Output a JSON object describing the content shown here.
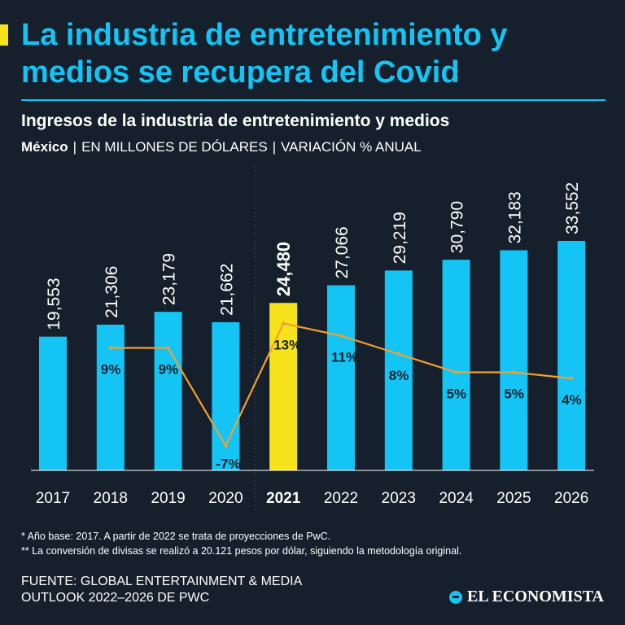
{
  "headline": {
    "line1": "La industria de entretenimiento y",
    "line2": "medios se recupera del Covid"
  },
  "subtitle": "Ingresos de la industria de entretenimiento y medios",
  "meta": {
    "country": "México",
    "unit": "EN MILLONES DE DÓLARES",
    "variation": "VARIACIÓN % ANUAL"
  },
  "colors": {
    "background": "#15202c",
    "bar": "#14c4f5",
    "highlight_bar": "#f7e31c",
    "line": "#f0a030",
    "title": "#14c4f5"
  },
  "chart_data": {
    "type": "bar",
    "title": "Ingresos de la industria de entretenimiento y medios",
    "xlabel": "",
    "ylabel": "EN MILLONES DE DÓLARES",
    "categories": [
      "2017",
      "2018",
      "2019",
      "2020",
      "2021",
      "2022",
      "2023",
      "2024",
      "2025",
      "2026"
    ],
    "values": [
      19553,
      21306,
      23179,
      21662,
      24480,
      27066,
      29219,
      30790,
      32183,
      33552
    ],
    "value_labels": [
      "19,553",
      "21,306",
      "23,179",
      "21,662",
      "24,480",
      "27,066",
      "29,219",
      "30,790",
      "32,183",
      "33,552"
    ],
    "highlight_category": "2021",
    "ylim": [
      0,
      35000
    ],
    "grid": false,
    "line_series": {
      "name": "VARIACIÓN % ANUAL",
      "categories": [
        "2018",
        "2019",
        "2020",
        "2021",
        "2022",
        "2023",
        "2024",
        "2025",
        "2026"
      ],
      "values": [
        9,
        9,
        -7,
        13,
        11,
        8,
        5,
        5,
        4
      ],
      "labels": [
        "9%",
        "9%",
        "-7%",
        "13%",
        "11%",
        "8%",
        "5%",
        "5%",
        "4%"
      ],
      "ylim": [
        -10,
        16
      ]
    }
  },
  "footnotes": {
    "base": "* Año base: 2017. A partir de 2022 se trata de proyecciones de PwC.",
    "conversion": "** La conversión de divisas se realizó a 20.121 pesos por dólar, siguiendo la metodología original."
  },
  "source": {
    "line1": "FUENTE: GLOBAL ENTERTAINMENT & MEDIA",
    "line2": "OUTLOOK 2022–2026 DE PWC"
  },
  "brand": "EL ECONOMISTA"
}
